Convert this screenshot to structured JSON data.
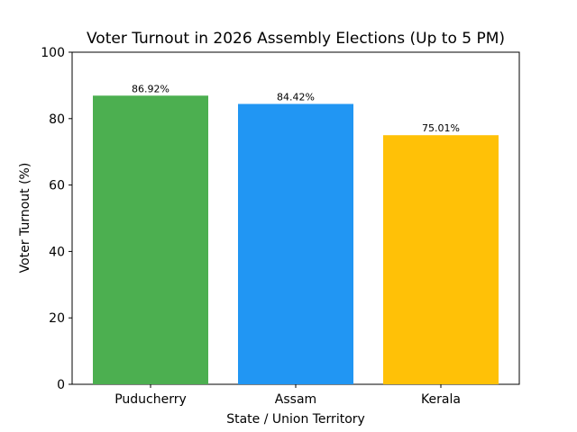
{
  "chart_data": {
    "type": "bar",
    "title": "Voter Turnout in 2026 Assembly Elections (Up to 5 PM)",
    "xlabel": "State / Union Territory",
    "ylabel": "Voter Turnout (%)",
    "categories": [
      "Puducherry",
      "Assam",
      "Kerala"
    ],
    "values": [
      86.92,
      84.42,
      75.01
    ],
    "data_labels": [
      "86.92%",
      "84.42%",
      "75.01%"
    ],
    "colors": [
      "#4caf50",
      "#2196f3",
      "#ffc107"
    ],
    "ylim": [
      0,
      100
    ],
    "yticks": [
      0,
      20,
      40,
      60,
      80,
      100
    ],
    "grid": false,
    "legend": "none"
  }
}
